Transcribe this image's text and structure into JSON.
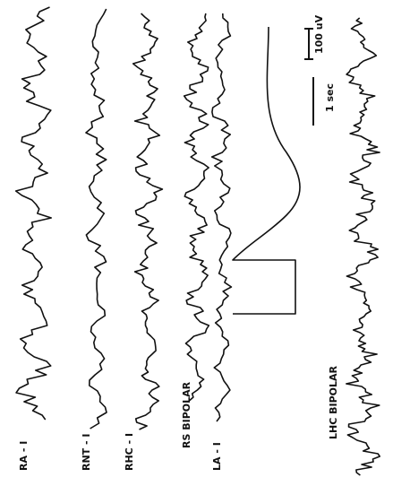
{
  "traces": [
    {
      "label": "RA - I"
    },
    {
      "label": "RNT - I"
    },
    {
      "label": "RHC - I"
    },
    {
      "label": "RS BIPOLAR"
    },
    {
      "label": "LA - I"
    },
    {
      "label": "LHC BIPOLAR"
    }
  ],
  "calibration": {
    "amplitude": "100 uV",
    "time": "1 sec"
  }
}
